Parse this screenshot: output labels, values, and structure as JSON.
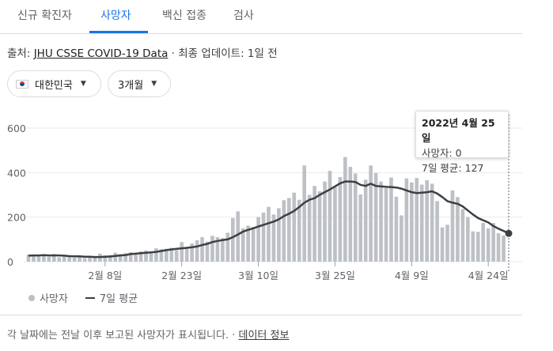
{
  "tabs": [
    {
      "label": "신규 확진자",
      "active": false
    },
    {
      "label": "사망자",
      "active": true
    },
    {
      "label": "백신 접종",
      "active": false
    },
    {
      "label": "검사",
      "active": false
    }
  ],
  "source": {
    "prefix": "출처: ",
    "link": "JHU CSSE COVID-19 Data",
    "suffix": " · 최종 업데이트: 1일 전"
  },
  "filters": {
    "country": "대한민국",
    "period": "3개월"
  },
  "tooltip": {
    "date": "2022년 4월 25일",
    "deaths": "사망자: 0",
    "avg": "7일 평균: 127"
  },
  "legend": {
    "bars": "사망자",
    "line": "7일 평균"
  },
  "footer": {
    "text": "각 날짜에는 전날 이후 보고된 사망자가 표시됩니다. · ",
    "link": "데이터 정보"
  },
  "colors": {
    "accent": "#1a73e8",
    "bar": "#bdc1c6",
    "line": "#3c4043"
  },
  "chart_data": {
    "type": "bar",
    "ylim": [
      0,
      600
    ],
    "yticks": [
      0,
      200,
      400,
      600
    ],
    "x_tick_labels": [
      "2월 8일",
      "2월 23일",
      "3월 10일",
      "3월 25일",
      "4월 9일",
      "4월 24일"
    ],
    "series": [
      {
        "name": "사망자",
        "type": "bar",
        "values": [
          32,
          28,
          25,
          30,
          22,
          35,
          20,
          26,
          24,
          18,
          22,
          16,
          20,
          24,
          36,
          28,
          30,
          40,
          34,
          38,
          42,
          36,
          46,
          50,
          40,
          60,
          56,
          58,
          62,
          52,
          88,
          58,
          82,
          96,
          110,
          90,
          116,
          110,
          106,
          130,
          196,
          226,
          150,
          162,
          156,
          200,
          220,
          246,
          212,
          240,
          276,
          286,
          310,
          278,
          432,
          300,
          340,
          316,
          360,
          408,
          336,
          380,
          470,
          426,
          396,
          302,
          368,
          432,
          398,
          360,
          330,
          378,
          292,
          208,
          374,
          356,
          376,
          346,
          366,
          350,
          272,
          154,
          166,
          320,
          290,
          236,
          200,
          136,
          134,
          174,
          150,
          174,
          128,
          118,
          0
        ]
      },
      {
        "name": "7일 평균",
        "type": "line",
        "values": [
          27,
          28,
          28,
          29,
          28,
          28,
          28,
          27,
          25,
          24,
          24,
          22,
          22,
          21,
          21,
          22,
          23,
          26,
          28,
          30,
          34,
          36,
          38,
          40,
          42,
          44,
          48,
          52,
          55,
          58,
          60,
          62,
          65,
          68,
          75,
          80,
          88,
          93,
          97,
          100,
          110,
          122,
          135,
          143,
          150,
          158,
          165,
          173,
          180,
          190,
          205,
          215,
          228,
          245,
          265,
          278,
          285,
          300,
          312,
          324,
          338,
          352,
          360,
          360,
          358,
          345,
          340,
          350,
          340,
          338,
          336,
          335,
          333,
          328,
          320,
          312,
          308,
          310,
          312,
          316,
          306,
          290,
          272,
          265,
          260,
          248,
          230,
          212,
          196,
          186,
          176,
          160,
          148,
          138,
          127
        ]
      }
    ]
  }
}
